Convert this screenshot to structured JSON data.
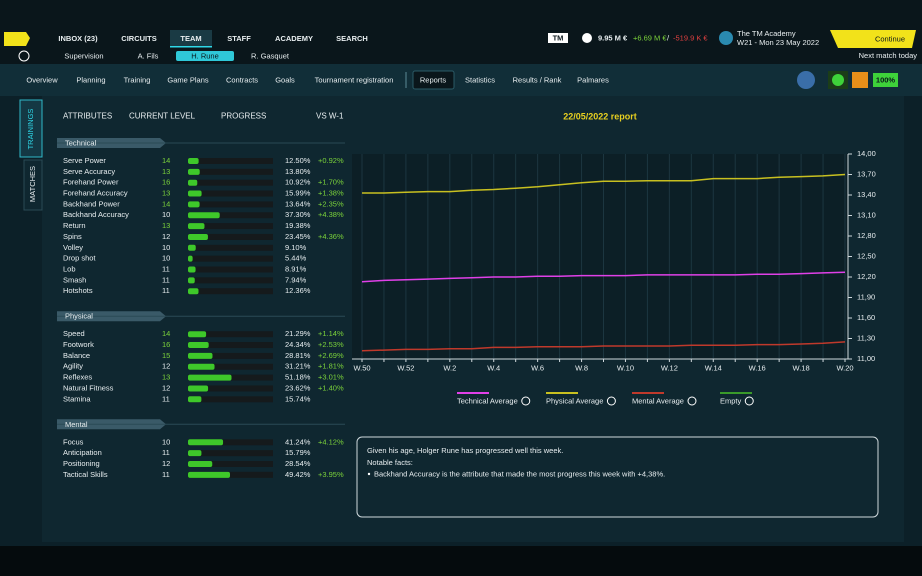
{
  "top_nav": [
    "INBOX (23)",
    "CIRCUITS",
    "TEAM",
    "STAFF",
    "ACADEMY",
    "SEARCH"
  ],
  "player_tabs": [
    "Supervision",
    "A. Fils",
    "H. Rune",
    "R. Gasquet"
  ],
  "finance": {
    "logo": "TM",
    "balance": "9.95 M €",
    "income": "+6.69 M €",
    "separator": "/",
    "expenses": "-519.9 K €"
  },
  "academy": {
    "name": "The TM Academy",
    "date": "W21 - Mon 23 May 2022"
  },
  "continue": {
    "label": "Continue",
    "note": "Next match today"
  },
  "tabs": [
    "Overview",
    "Planning",
    "Training",
    "Game Plans",
    "Contracts",
    "Goals",
    "Tournament registration",
    "Reports",
    "Statistics",
    "Results / Rank",
    "Palmares"
  ],
  "status": "100%",
  "side_tabs": [
    "TRAININGS",
    "MATCHES"
  ],
  "attributes": {
    "headers": [
      "ATTRIBUTES",
      "CURRENT LEVEL",
      "PROGRESS",
      "VS W-1"
    ],
    "sections": [
      {
        "name": "Technical",
        "rows": [
          {
            "name": "Serve Power",
            "level": 14,
            "progress": 12.5,
            "progress_label": "12.50%",
            "change": "+0.92%"
          },
          {
            "name": "Serve Accuracy",
            "level": 13,
            "progress": 13.8,
            "progress_label": "13.80%"
          },
          {
            "name": "Forehand Power",
            "level": 16,
            "progress": 10.92,
            "progress_label": "10.92%",
            "change": "+1.70%"
          },
          {
            "name": "Forehand Accuracy",
            "level": 13,
            "progress": 15.99,
            "progress_label": "15.99%",
            "change": "+1.38%"
          },
          {
            "name": "Backhand Power",
            "level": 14,
            "progress": 13.64,
            "progress_label": "13.64%",
            "change": "+2.35%"
          },
          {
            "name": "Backhand Accuracy",
            "level": 10,
            "progress": 37.3,
            "progress_label": "37.30%",
            "change": "+4.38%"
          },
          {
            "name": "Return",
            "level": 13,
            "progress": 19.38,
            "progress_label": "19.38%"
          },
          {
            "name": "Spins",
            "level": 12,
            "progress": 23.45,
            "progress_label": "23.45%",
            "change": "+4.36%"
          },
          {
            "name": "Volley",
            "level": 10,
            "progress": 9.1,
            "progress_label": "9.10%"
          },
          {
            "name": "Drop shot",
            "level": 10,
            "progress": 5.44,
            "progress_label": "5.44%"
          },
          {
            "name": "Lob",
            "level": 11,
            "progress": 8.91,
            "progress_label": "8.91%"
          },
          {
            "name": "Smash",
            "level": 11,
            "progress": 7.94,
            "progress_label": "7.94%"
          },
          {
            "name": "Hotshots",
            "level": 11,
            "progress": 12.36,
            "progress_label": "12.36%"
          }
        ]
      },
      {
        "name": "Physical",
        "rows": [
          {
            "name": "Speed",
            "level": 14,
            "progress": 21.29,
            "progress_label": "21.29%",
            "change": "+1.14%"
          },
          {
            "name": "Footwork",
            "level": 16,
            "progress": 24.34,
            "progress_label": "24.34%",
            "change": "+2.53%"
          },
          {
            "name": "Balance",
            "level": 15,
            "progress": 28.81,
            "progress_label": "28.81%",
            "change": "+2.69%"
          },
          {
            "name": "Agility",
            "level": 12,
            "progress": 31.21,
            "progress_label": "31.21%",
            "change": "+1.81%"
          },
          {
            "name": "Reflexes",
            "level": 13,
            "progress": 51.18,
            "progress_label": "51.18%",
            "change": "+3.01%"
          },
          {
            "name": "Natural Fitness",
            "level": 12,
            "progress": 23.62,
            "progress_label": "23.62%",
            "change": "+1.40%"
          },
          {
            "name": "Stamina",
            "level": 11,
            "progress": 15.74,
            "progress_label": "15.74%"
          }
        ]
      },
      {
        "name": "Mental",
        "rows": [
          {
            "name": "Focus",
            "level": 10,
            "progress": 41.24,
            "progress_label": "41.24%",
            "change": "+4.12%"
          },
          {
            "name": "Anticipation",
            "level": 11,
            "progress": 15.79,
            "progress_label": "15.79%"
          },
          {
            "name": "Positioning",
            "level": 12,
            "progress": 28.54,
            "progress_label": "28.54%"
          },
          {
            "name": "Tactical Skills",
            "level": 11,
            "progress": 49.42,
            "progress_label": "49.42%",
            "change": "+3.95%"
          }
        ]
      }
    ]
  },
  "chart_data": {
    "type": "line",
    "title": "22/05/2022 report",
    "categories": [
      "W.50",
      null,
      "W.52",
      null,
      "W.2",
      null,
      "W.4",
      null,
      "W.6",
      null,
      "W.8",
      null,
      "W.10",
      null,
      "W.12",
      null,
      "W.14",
      null,
      "W.16",
      null,
      "W.18",
      null,
      "W.20"
    ],
    "series": [
      {
        "name": "Technical Average",
        "color": "#e040e8",
        "values": [
          12.13,
          12.15,
          12.16,
          12.17,
          12.18,
          12.19,
          12.2,
          12.2,
          12.21,
          12.21,
          12.22,
          12.22,
          12.22,
          12.23,
          12.23,
          12.23,
          12.23,
          12.23,
          12.24,
          12.24,
          12.25,
          12.26,
          12.27
        ]
      },
      {
        "name": "Physical Average",
        "color": "#c8c020",
        "values": [
          13.43,
          13.43,
          13.44,
          13.45,
          13.45,
          13.47,
          13.48,
          13.5,
          13.52,
          13.55,
          13.58,
          13.6,
          13.6,
          13.61,
          13.61,
          13.61,
          13.64,
          13.64,
          13.64,
          13.66,
          13.67,
          13.68,
          13.7
        ]
      },
      {
        "name": "Mental Average",
        "color": "#c0392b",
        "values": [
          11.12,
          11.13,
          11.14,
          11.14,
          11.15,
          11.15,
          11.17,
          11.17,
          11.18,
          11.18,
          11.18,
          11.19,
          11.19,
          11.19,
          11.19,
          11.2,
          11.2,
          11.2,
          11.21,
          11.21,
          11.22,
          11.23,
          11.25
        ]
      },
      {
        "name": "Empty",
        "color": "#3a9a2a",
        "values": [
          null,
          null,
          null,
          null,
          null,
          null,
          null,
          null,
          null,
          null,
          null,
          null,
          null,
          null,
          null,
          null,
          null,
          null,
          null,
          null,
          null,
          null,
          null
        ]
      }
    ],
    "ylim": [
      11,
      14
    ],
    "yticks": [
      {
        "value": 11,
        "label": "11,00"
      },
      {
        "value": 11.3,
        "label": "11,30"
      },
      {
        "value": 11.6,
        "label": "11,60"
      },
      {
        "value": 11.9,
        "label": "11,90"
      },
      {
        "value": 12.2,
        "label": "12,20"
      },
      {
        "value": 12.5,
        "label": "12,50"
      },
      {
        "value": 12.8,
        "label": "12,80"
      },
      {
        "value": 13.1,
        "label": "13,10"
      },
      {
        "value": 13.4,
        "label": "13,40"
      },
      {
        "value": 13.7,
        "label": "13,70"
      },
      {
        "value": 14,
        "label": "14,00"
      }
    ],
    "y_axis_side": "right",
    "grid": true,
    "legend": "bottom"
  },
  "summary": {
    "intro": "Given his age, Holger Rune has progressed well this week.",
    "facts_title": "Notable facts:",
    "facts": [
      "Backhand Accuracy is the attribute that made the most progress this week with +4,38%."
    ]
  }
}
